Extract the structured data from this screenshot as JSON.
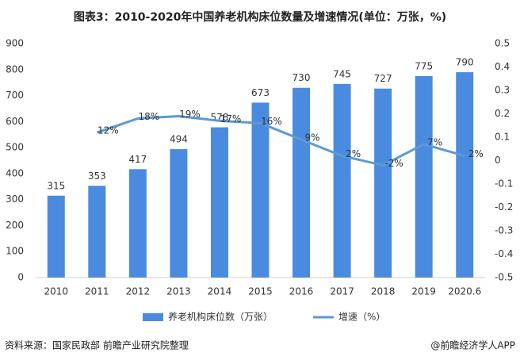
{
  "chart_data": {
    "type": "bar_line",
    "title": "图表3：2010-2020年中国养老机构床位数量及增速情况(单位：万张，%)",
    "categories": [
      "2010",
      "2011",
      "2012",
      "2013",
      "2014",
      "2015",
      "2016",
      "2017",
      "2018",
      "2019",
      "2020.6"
    ],
    "series": [
      {
        "name": "养老机构床位数（万张）",
        "color": "#4a8be0",
        "type": "bar",
        "values": [
          315,
          353,
          417,
          494,
          578,
          673,
          730,
          745,
          727,
          775,
          790
        ]
      },
      {
        "name": "增速（%）",
        "color": "#5b9bd5",
        "type": "line",
        "axis": "y2",
        "values": [
          null,
          0.12,
          0.18,
          0.19,
          0.17,
          0.16,
          0.09,
          0.02,
          -0.02,
          0.07,
          0.02
        ],
        "value_labels": [
          null,
          "12%",
          "18%",
          "19%",
          "17%",
          "16%",
          "9%",
          "2%",
          "-2%",
          "7%",
          "2%"
        ]
      }
    ],
    "ylim": [
      0,
      900
    ],
    "yticks": [
      0,
      100,
      200,
      300,
      400,
      500,
      600,
      700,
      800,
      900
    ],
    "y2lim": [
      -0.5,
      0.5
    ],
    "y2ticks": [
      -0.5,
      -0.4,
      -0.3,
      -0.2,
      -0.1,
      0,
      0.1,
      0.2,
      0.3,
      0.4,
      0.5
    ],
    "grid": false,
    "legend": "bottom",
    "source": "资料来源：国家民政部 前瞻产业研究院整理",
    "credit": "@前瞻经济学人APP"
  }
}
